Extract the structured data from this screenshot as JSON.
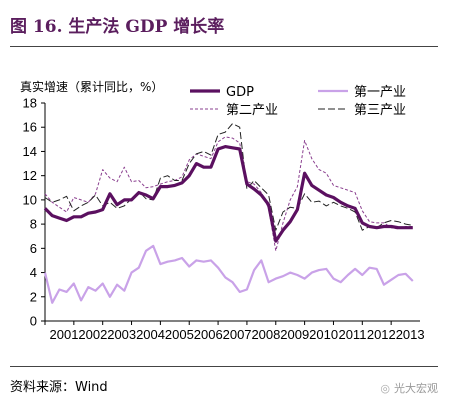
{
  "figure": {
    "title": "图 16. 生产法 GDP 增长率",
    "source": "资料来源：Wind",
    "watermark": "光大宏观",
    "watermark_icon": "wechat-icon"
  },
  "chart_data": {
    "type": "line",
    "ylabel": "真实增速（累计同比，%）",
    "xlabel": "",
    "ylim": [
      0,
      18
    ],
    "yticks": [
      0,
      2,
      4,
      6,
      8,
      10,
      12,
      14,
      16,
      18
    ],
    "xlim": [
      2001.0,
      2014.0
    ],
    "xticks": [
      "2001",
      "2002",
      "2003",
      "2004",
      "2005",
      "2006",
      "2007",
      "2008",
      "2009",
      "2010",
      "2011",
      "2012",
      "2013"
    ],
    "grid": false,
    "legend_position": "top",
    "x": [
      2001.0,
      2001.25,
      2001.5,
      2001.75,
      2002.0,
      2002.25,
      2002.5,
      2002.75,
      2003.0,
      2003.25,
      2003.5,
      2003.75,
      2004.0,
      2004.25,
      2004.5,
      2004.75,
      2005.0,
      2005.25,
      2005.5,
      2005.75,
      2006.0,
      2006.25,
      2006.5,
      2006.75,
      2007.0,
      2007.25,
      2007.5,
      2007.75,
      2008.0,
      2008.25,
      2008.5,
      2008.75,
      2009.0,
      2009.25,
      2009.5,
      2009.75,
      2010.0,
      2010.25,
      2010.5,
      2010.75,
      2011.0,
      2011.25,
      2011.5,
      2011.75,
      2012.0,
      2012.25,
      2012.5,
      2012.75,
      2013.0,
      2013.25,
      2013.5,
      2013.75
    ],
    "series": [
      {
        "name": "GDP",
        "color": "#5b1060",
        "width": 3.2,
        "dash": "",
        "values": [
          9.3,
          8.7,
          8.5,
          8.3,
          8.6,
          8.6,
          8.9,
          9.0,
          9.2,
          10.5,
          9.6,
          10.0,
          10.0,
          10.6,
          10.4,
          10.1,
          11.1,
          11.1,
          11.2,
          11.4,
          12.0,
          13.0,
          12.7,
          12.7,
          14.2,
          14.4,
          14.3,
          14.2,
          11.3,
          10.9,
          10.4,
          9.6,
          6.6,
          7.5,
          8.2,
          9.2,
          12.2,
          11.2,
          10.8,
          10.4,
          10.2,
          9.8,
          9.5,
          9.3,
          8.1,
          7.8,
          7.7,
          7.8,
          7.8,
          7.7,
          7.7,
          7.7
        ]
      },
      {
        "name": "第一产业",
        "color": "#c9a2e8",
        "width": 2.2,
        "dash": "",
        "values": [
          4.0,
          1.5,
          2.6,
          2.4,
          3.1,
          1.7,
          2.8,
          2.5,
          3.1,
          2.0,
          3.0,
          2.5,
          4.0,
          4.4,
          5.8,
          6.2,
          4.7,
          4.9,
          5.0,
          5.2,
          4.5,
          5.0,
          4.9,
          5.0,
          4.4,
          3.6,
          3.2,
          2.4,
          2.6,
          4.2,
          5.0,
          3.2,
          3.5,
          3.7,
          4.0,
          3.8,
          3.5,
          4.0,
          4.2,
          4.3,
          3.5,
          3.2,
          3.8,
          4.3,
          3.8,
          4.4,
          4.3,
          3.0,
          3.4,
          3.8,
          3.9,
          3.3
        ]
      },
      {
        "name": "第二产业",
        "color": "#8a3f8f",
        "width": 1,
        "dash": "3,2",
        "values": [
          10.5,
          9.8,
          9.4,
          9.0,
          10.2,
          10.0,
          9.8,
          10.5,
          12.5,
          11.8,
          11.5,
          12.7,
          11.5,
          11.6,
          11.0,
          11.1,
          11.3,
          11.5,
          11.6,
          11.9,
          13.3,
          13.8,
          13.6,
          13.4,
          14.8,
          15.2,
          15.1,
          14.7,
          11.5,
          11.3,
          10.6,
          9.3,
          5.8,
          8.1,
          10.0,
          11.1,
          14.9,
          13.4,
          12.5,
          12.2,
          11.2,
          11.0,
          10.8,
          10.6,
          9.1,
          8.2,
          8.1,
          8.1,
          7.7,
          7.6,
          7.8,
          7.8
        ]
      },
      {
        "name": "第三产业",
        "color": "#222222",
        "width": 1,
        "dash": "7,3",
        "values": [
          10.2,
          9.8,
          10.0,
          10.3,
          9.1,
          9.5,
          9.8,
          10.4,
          9.5,
          9.8,
          9.3,
          9.5,
          10.1,
          10.7,
          10.1,
          10.0,
          11.8,
          12.0,
          11.6,
          11.6,
          13.0,
          13.8,
          14.0,
          13.7,
          15.4,
          15.6,
          16.3,
          16.0,
          10.9,
          11.6,
          11.0,
          10.4,
          7.5,
          9.0,
          9.4,
          9.3,
          10.5,
          9.8,
          9.9,
          9.5,
          9.8,
          9.5,
          9.3,
          9.0,
          7.5,
          7.8,
          7.7,
          8.1,
          8.3,
          8.2,
          8.0,
          7.9
        ]
      }
    ]
  }
}
